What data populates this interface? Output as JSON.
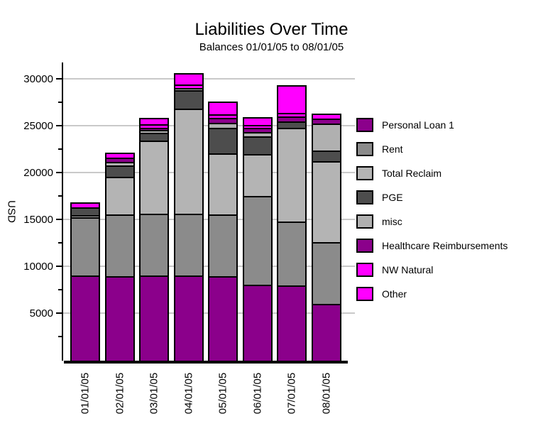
{
  "title": "Liabilities Over Time",
  "subtitle": "Balances 01/01/05 to 08/01/05",
  "chart_data": {
    "type": "bar",
    "stacked": true,
    "title": "Liabilities Over Time",
    "subtitle": "Balances 01/01/05 to 08/01/05",
    "xlabel": "",
    "ylabel": "USD",
    "categories": [
      "01/01/05",
      "02/01/05",
      "03/01/05",
      "04/01/05",
      "05/01/05",
      "06/01/05",
      "07/01/05",
      "08/01/05"
    ],
    "series": [
      {
        "name": "Personal Loan 1",
        "color": "#8B008B",
        "values": [
          9000,
          9000,
          9000,
          9000,
          9000,
          8000,
          8000,
          6000
        ]
      },
      {
        "name": "Rent",
        "color": "#8B8B8B",
        "values": [
          6200,
          6600,
          6600,
          6600,
          6600,
          9500,
          6800,
          6600
        ]
      },
      {
        "name": "Total Reclaim",
        "color": "#B4B4B4",
        "values": [
          250,
          4000,
          7800,
          11200,
          6500,
          4500,
          10000,
          8600
        ]
      },
      {
        "name": "PGE",
        "color": "#4D4D4D",
        "values": [
          850,
          1200,
          850,
          2000,
          2700,
          1900,
          700,
          1100
        ]
      },
      {
        "name": "misc",
        "color": "#B0B0B0",
        "values": [
          0,
          400,
          300,
          250,
          500,
          450,
          0,
          2900
        ]
      },
      {
        "name": "Healthcare Reimbursements",
        "color": "#8B008B",
        "values": [
          0,
          450,
          250,
          0,
          550,
          450,
          550,
          550
        ]
      },
      {
        "name": "NW Natural",
        "color": "#FF00FF",
        "values": [
          550,
          500,
          350,
          350,
          350,
          300,
          350,
          0
        ]
      },
      {
        "name": "Other",
        "color": "#FF00FF",
        "values": [
          0,
          0,
          650,
          1200,
          1400,
          800,
          2950,
          500
        ]
      }
    ],
    "totals": [
      16850,
      22150,
      25800,
      30600,
      27600,
      25900,
      29350,
      26250
    ],
    "y_ticks": [
      5000,
      10000,
      15000,
      20000,
      25000,
      30000
    ],
    "y_minor_ticks": [
      2500,
      7500,
      12500,
      17500,
      22500,
      27500
    ],
    "ylim": [
      0,
      31500
    ],
    "grid": true,
    "legend_position": "right",
    "stack_order": "first series at bottom, last series on top"
  },
  "colors": {
    "axis": "#000000",
    "gridline": "#c9c9c9",
    "background": "#ffffff",
    "purple": "#8B008B",
    "rent_gray": "#8B8B8B",
    "light_gray": "#B4B4B4",
    "dark_gray": "#4D4D4D",
    "magenta": "#FF00FF"
  }
}
